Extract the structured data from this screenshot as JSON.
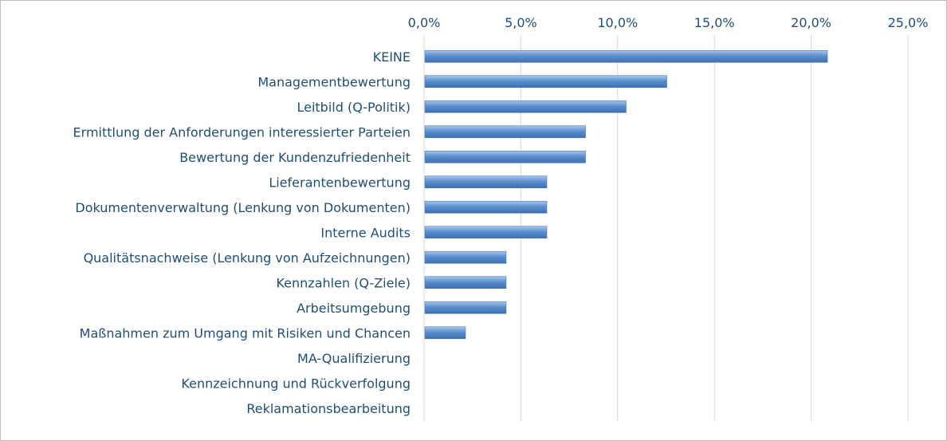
{
  "chart_data": {
    "type": "bar",
    "orientation": "horizontal",
    "title": "",
    "xlabel": "",
    "ylabel": "",
    "xlim": [
      0,
      25
    ],
    "x_ticks": [
      "0,0%",
      "5,0%",
      "10,0%",
      "15,0%",
      "20,0%",
      "25,0%"
    ],
    "x_axis_position": "top",
    "grid": "vertical",
    "legend": "none",
    "bar_color": "#5b8fcf",
    "categories": [
      "KEINE",
      "Managementbewertung",
      "Leitbild (Q-Politik)",
      "Ermittlung der Anforderungen interessierter Parteien",
      "Bewertung der Kundenzufriedenheit",
      "Lieferantenbewertung",
      "Dokumentenverwaltung (Lenkung von Dokumenten)",
      "Interne Audits",
      "Qualitätsnachweise (Lenkung von Aufzeichnungen)",
      "Kennzahlen (Q-Ziele)",
      "Arbeitsumgebung",
      "Maßnahmen zum Umgang mit Risiken und Chancen",
      "MA-Qualifizierung",
      "Kennzeichnung und Rückverfolgung",
      "Reklamationsbearbeitung"
    ],
    "values": [
      20.8,
      12.5,
      10.4,
      8.3,
      8.3,
      6.3,
      6.3,
      6.3,
      4.2,
      4.2,
      4.2,
      2.1,
      0,
      0,
      0
    ]
  }
}
